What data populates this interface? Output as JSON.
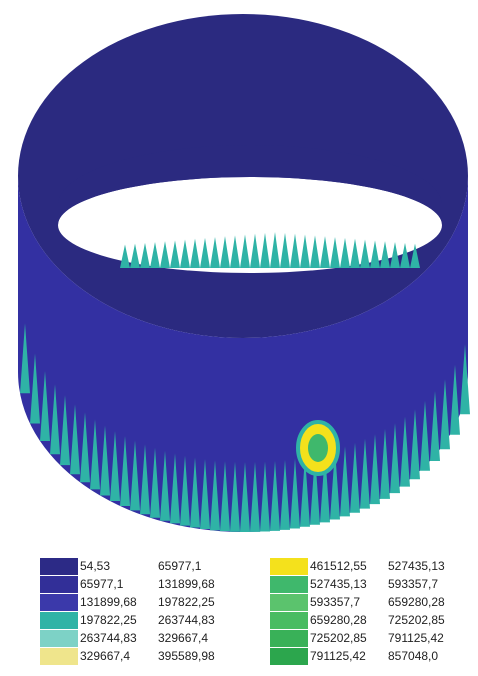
{
  "legend": {
    "left": [
      {
        "from": "54,53",
        "to": "65977,1",
        "color": "#2c2a86"
      },
      {
        "from": "65977,1",
        "to": "131899,68",
        "color": "#322f98"
      },
      {
        "from": "131899,68",
        "to": "197822,25",
        "color": "#3b39aa"
      },
      {
        "from": "197822,25",
        "to": "263744,83",
        "color": "#2fb3a6"
      },
      {
        "from": "263744,83",
        "to": "329667,4",
        "color": "#7dd2c6"
      },
      {
        "from": "329667,4",
        "to": "395589,98",
        "color": "#efe58c"
      }
    ],
    "right": [
      {
        "from": "461512,55",
        "to": "527435,13",
        "color": "#f4e11c"
      },
      {
        "from": "527435,13",
        "to": "593357,7",
        "color": "#3fb86c"
      },
      {
        "from": "593357,7",
        "to": "659280,28",
        "color": "#5bc36d"
      },
      {
        "from": "659280,28",
        "to": "725202,85",
        "color": "#48bc61"
      },
      {
        "from": "725202,85",
        "to": "791125,42",
        "color": "#39b158"
      },
      {
        "from": "791125,42",
        "to": "857048,0",
        "color": "#2ca64d"
      }
    ]
  }
}
